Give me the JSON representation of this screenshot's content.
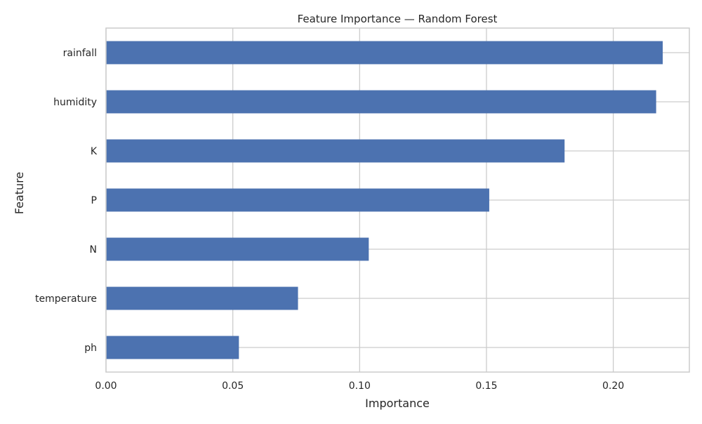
{
  "chart_data": {
    "type": "bar",
    "orientation": "horizontal",
    "title": "Feature Importance — Random Forest",
    "xlabel": "Importance",
    "ylabel": "Feature",
    "categories": [
      "rainfall",
      "humidity",
      "K",
      "P",
      "N",
      "temperature",
      "ph"
    ],
    "values": [
      0.2195,
      0.2169,
      0.1808,
      0.1511,
      0.1036,
      0.0757,
      0.0524
    ],
    "xlim": [
      0,
      0.23
    ],
    "xticks": [
      0.0,
      0.05,
      0.1,
      0.15,
      0.2
    ],
    "xtick_labels": [
      "0.00",
      "0.05",
      "0.10",
      "0.15",
      "0.20"
    ],
    "grid": true,
    "bar_color": "#4c72b0",
    "grid_color": "#cccccc",
    "axes_color": "#cccccc"
  }
}
